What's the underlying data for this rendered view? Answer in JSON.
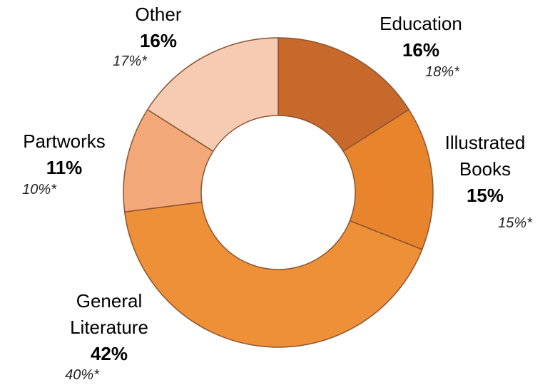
{
  "chart_data": {
    "type": "donut",
    "categories": [
      "Education",
      "Illustrated Books",
      "General Literature",
      "Partworks",
      "Other"
    ],
    "colors": [
      "#c8692c",
      "#e8842c",
      "#ee9038",
      "#f2a878",
      "#f6cbb2"
    ],
    "series": [
      {
        "values": [
          16,
          15,
          42,
          11,
          16
        ],
        "value_labels": [
          "16%",
          "15%",
          "42%",
          "11%",
          "16%"
        ]
      },
      {
        "values": [
          18,
          15,
          40,
          10,
          17
        ],
        "value_labels": [
          "18%*",
          "15%*",
          "40%*",
          "10%*",
          "17%*"
        ]
      }
    ]
  }
}
